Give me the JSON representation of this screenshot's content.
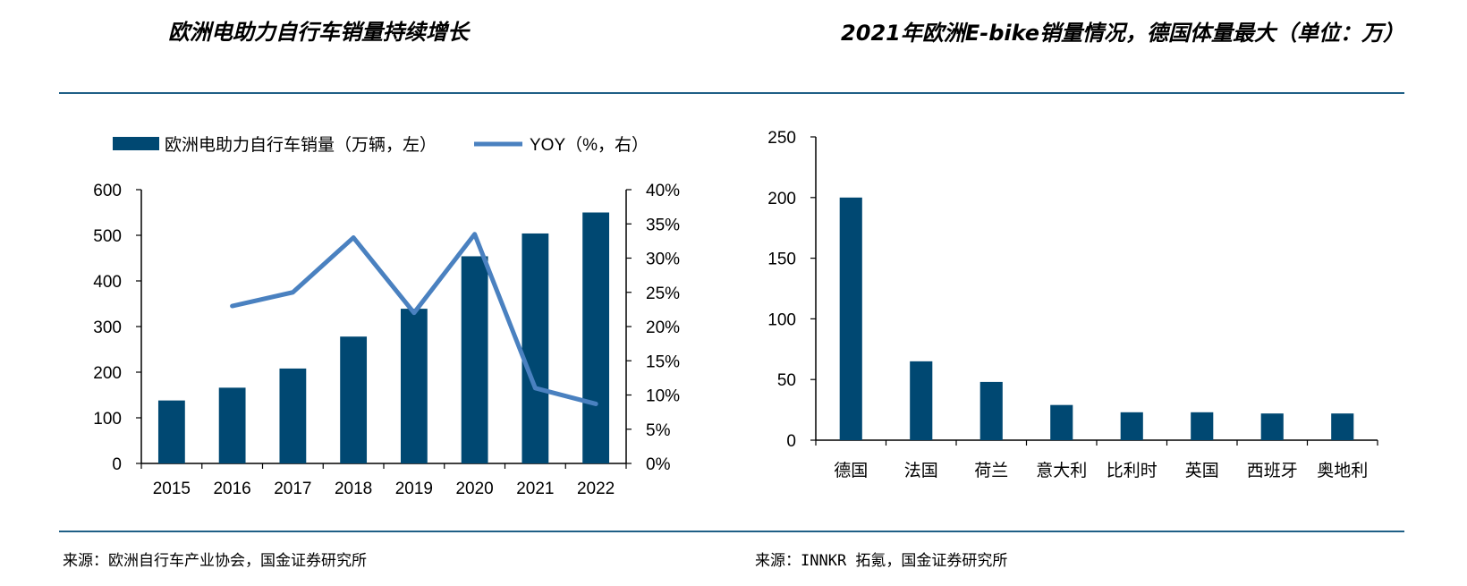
{
  "header": {
    "left_title": "欧洲电助力自行车销量持续增长",
    "right_title": "2021年欧洲E-bike销量情况，德国体量最大（单位：万）"
  },
  "footer": {
    "left_source": "来源：欧洲自行车产业协会，国金证券研究所",
    "right_source": "来源：INNKR 拓氪，国金证券研究所"
  },
  "colors": {
    "bar": "#004872",
    "line": "#4a81c0",
    "rule": "#1f5f86",
    "axis": "#000000"
  },
  "chart_data": [
    {
      "type": "bar+line",
      "categories": [
        "2015",
        "2016",
        "2017",
        "2018",
        "2019",
        "2020",
        "2021",
        "2022"
      ],
      "series": [
        {
          "name": "欧洲电助力自行车销量（万辆，左）",
          "type": "bar",
          "axis": "left",
          "values": [
            138,
            166,
            208,
            278,
            339,
            454,
            504,
            550
          ]
        },
        {
          "name": "YOY（%，右）",
          "type": "line",
          "axis": "right",
          "values": [
            null,
            0.23,
            0.25,
            0.33,
            0.22,
            0.335,
            0.11,
            0.087
          ]
        }
      ],
      "y_left": {
        "min": 0,
        "max": 600,
        "ticks": [
          "0",
          "100",
          "200",
          "300",
          "400",
          "500",
          "600"
        ]
      },
      "y_right": {
        "min": 0,
        "max": 0.4,
        "ticks": [
          "0%",
          "5%",
          "10%",
          "15%",
          "20%",
          "25%",
          "30%",
          "35%",
          "40%"
        ]
      },
      "legend_position": "top",
      "grid": false
    },
    {
      "type": "bar",
      "categories": [
        "德国",
        "法国",
        "荷兰",
        "意大利",
        "比利时",
        "英国",
        "西班牙",
        "奥地利"
      ],
      "values": [
        200,
        65,
        48,
        29,
        23,
        23,
        22,
        22
      ],
      "ylim": [
        0,
        250
      ],
      "y_ticks": [
        "0",
        "50",
        "100",
        "150",
        "200",
        "250"
      ],
      "grid": false
    }
  ]
}
